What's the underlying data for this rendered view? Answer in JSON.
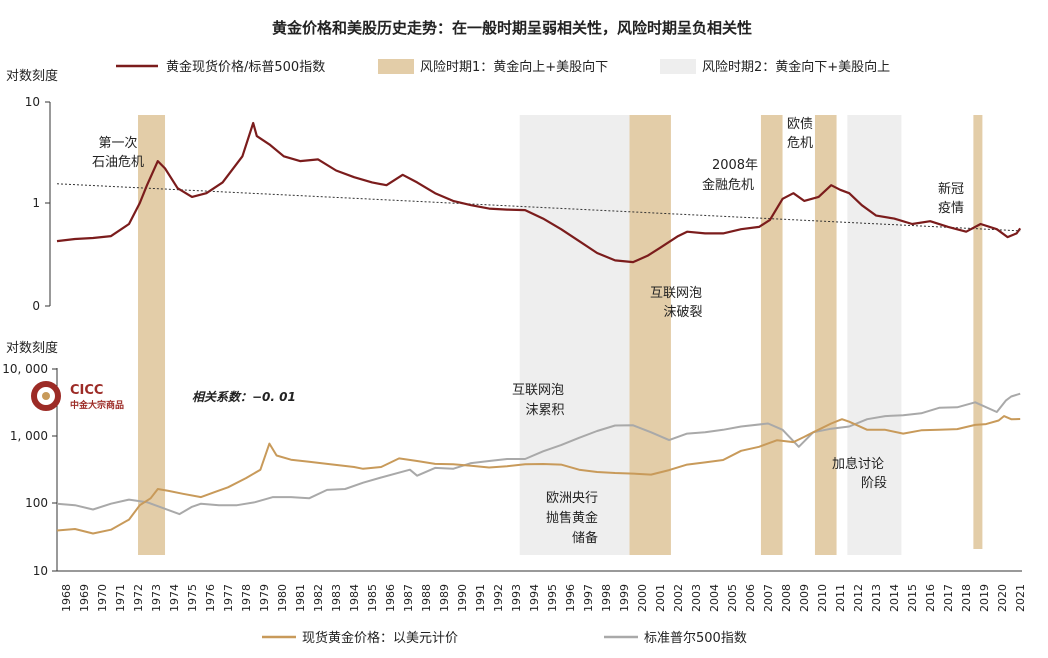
{
  "chart_data": {
    "title": "黄金价格和美股历史走势：在一般时期呈弱相关性，风险时期呈负相关性",
    "legend": {
      "ratio_line": "黄金现货价格/标普500指数",
      "risk1": "风险时期1：黄金向上+美股向下",
      "risk2": "风险时期2：黄金向下+美股向上"
    },
    "colors": {
      "ratio": "#7b1c1c",
      "trend": "#333333",
      "gold": "#c89a5a",
      "spx": "#a9a9a9",
      "risk1": "#e3cda8",
      "risk2": "#eeeeee",
      "brand": "#9c2b26"
    },
    "x_range": [
      1968,
      2021.6
    ],
    "x_ticks": [
      "1968",
      "1969",
      "1970",
      "1971",
      "1972",
      "1973",
      "1974",
      "1975",
      "1976",
      "1977",
      "1978",
      "1979",
      "1980",
      "1981",
      "1982",
      "1983",
      "1984",
      "1985",
      "1986",
      "1987",
      "1988",
      "1989",
      "1990",
      "1991",
      "1992",
      "1993",
      "1994",
      "1995",
      "1996",
      "1997",
      "1998",
      "1999",
      "2000",
      "2001",
      "2002",
      "2003",
      "2004",
      "2005",
      "2006",
      "2007",
      "2008",
      "2009",
      "2010",
      "2011",
      "2012",
      "2013",
      "2014",
      "2015",
      "2016",
      "2017",
      "2018",
      "2019",
      "2020",
      "2021"
    ],
    "risk_periods_1": [
      [
        1972.5,
        1974.0
      ],
      [
        1999.8,
        2002.1
      ],
      [
        2007.1,
        2008.3
      ],
      [
        2010.1,
        2011.3
      ],
      [
        2018.9,
        2019.4
      ]
    ],
    "risk_periods_2": [
      [
        1993.7,
        1999.8
      ],
      [
        2011.9,
        2014.9
      ]
    ],
    "top_panel": {
      "type": "line",
      "y_axis_title": "对数刻度",
      "y_ticks": [
        "10",
        "1",
        "0"
      ],
      "series": {
        "name": "黄金现货价格/标普500指数",
        "points": [
          [
            1968,
            0.42
          ],
          [
            1969,
            0.44
          ],
          [
            1970,
            0.45
          ],
          [
            1971,
            0.47
          ],
          [
            1972,
            0.62
          ],
          [
            1972.6,
            1.0
          ],
          [
            1973.0,
            1.5
          ],
          [
            1973.6,
            2.6
          ],
          [
            1974.0,
            2.2
          ],
          [
            1974.7,
            1.4
          ],
          [
            1975.5,
            1.15
          ],
          [
            1976.3,
            1.25
          ],
          [
            1977.2,
            1.6
          ],
          [
            1978.3,
            2.9
          ],
          [
            1978.9,
            6.2
          ],
          [
            1979.1,
            4.6
          ],
          [
            1979.8,
            3.8
          ],
          [
            1980.6,
            2.9
          ],
          [
            1981.5,
            2.6
          ],
          [
            1982.5,
            2.7
          ],
          [
            1983.5,
            2.1
          ],
          [
            1984.5,
            1.8
          ],
          [
            1985.5,
            1.6
          ],
          [
            1986.3,
            1.5
          ],
          [
            1987.2,
            1.9
          ],
          [
            1988.0,
            1.6
          ],
          [
            1989,
            1.25
          ],
          [
            1990,
            1.05
          ],
          [
            1991,
            0.95
          ],
          [
            1992,
            0.88
          ],
          [
            1993,
            0.86
          ],
          [
            1994,
            0.85
          ],
          [
            1995,
            0.7
          ],
          [
            1996,
            0.55
          ],
          [
            1997,
            0.42
          ],
          [
            1998,
            0.32
          ],
          [
            1999,
            0.27
          ],
          [
            2000,
            0.26
          ],
          [
            2000.8,
            0.3
          ],
          [
            2001.5,
            0.36
          ],
          [
            2002.5,
            0.47
          ],
          [
            2003,
            0.52
          ],
          [
            2004,
            0.5
          ],
          [
            2005,
            0.5
          ],
          [
            2006,
            0.55
          ],
          [
            2007,
            0.58
          ],
          [
            2007.6,
            0.68
          ],
          [
            2008.3,
            1.1
          ],
          [
            2008.9,
            1.25
          ],
          [
            2009.5,
            1.05
          ],
          [
            2010.3,
            1.15
          ],
          [
            2011.0,
            1.5
          ],
          [
            2011.5,
            1.35
          ],
          [
            2012,
            1.25
          ],
          [
            2012.7,
            0.95
          ],
          [
            2013.5,
            0.75
          ],
          [
            2014.5,
            0.7
          ],
          [
            2015.5,
            0.62
          ],
          [
            2016.5,
            0.66
          ],
          [
            2017.5,
            0.58
          ],
          [
            2018.5,
            0.52
          ],
          [
            2019.3,
            0.62
          ],
          [
            2020.2,
            0.55
          ],
          [
            2020.8,
            0.46
          ],
          [
            2021.3,
            0.5
          ],
          [
            2021.5,
            0.56
          ]
        ]
      },
      "trend": {
        "name": "趋势线",
        "start": [
          1968,
          1.55
        ],
        "end": [
          2021.5,
          0.53
        ]
      }
    },
    "bottom_panel": {
      "type": "line",
      "y_axis_title": "对数刻度",
      "y_ticks": [
        "10, 000",
        "1, 000",
        "100",
        "10"
      ],
      "series": [
        {
          "name": "现货黄金价格：以美元计价",
          "points": [
            [
              1968,
              40
            ],
            [
              1969,
              42
            ],
            [
              1970,
              36
            ],
            [
              1971,
              41
            ],
            [
              1972,
              58
            ],
            [
              1972.6,
              95
            ],
            [
              1973.2,
              120
            ],
            [
              1973.6,
              165
            ],
            [
              1974.2,
              155
            ],
            [
              1975.0,
              140
            ],
            [
              1976,
              125
            ],
            [
              1976.8,
              150
            ],
            [
              1977.5,
              175
            ],
            [
              1978.5,
              240
            ],
            [
              1979.3,
              320
            ],
            [
              1979.8,
              780
            ],
            [
              1980.2,
              520
            ],
            [
              1981,
              450
            ],
            [
              1982,
              420
            ],
            [
              1983,
              390
            ],
            [
              1984.5,
              350
            ],
            [
              1985,
              330
            ],
            [
              1986,
              350
            ],
            [
              1987,
              470
            ],
            [
              1988,
              430
            ],
            [
              1989,
              390
            ],
            [
              1990,
              385
            ],
            [
              1991,
              365
            ],
            [
              1992,
              345
            ],
            [
              1993,
              360
            ],
            [
              1994,
              385
            ],
            [
              1995,
              388
            ],
            [
              1996,
              380
            ],
            [
              1997,
              320
            ],
            [
              1998,
              295
            ],
            [
              1999,
              285
            ],
            [
              2000,
              280
            ],
            [
              2001,
              270
            ],
            [
              2002,
              315
            ],
            [
              2003,
              380
            ],
            [
              2004,
              410
            ],
            [
              2005,
              445
            ],
            [
              2006,
              610
            ],
            [
              2007,
              700
            ],
            [
              2008,
              875
            ],
            [
              2008.9,
              820
            ],
            [
              2009.5,
              980
            ],
            [
              2010,
              1150
            ],
            [
              2011,
              1550
            ],
            [
              2011.6,
              1800
            ],
            [
              2012,
              1650
            ],
            [
              2013,
              1250
            ],
            [
              2014,
              1250
            ],
            [
              2015,
              1100
            ],
            [
              2016,
              1230
            ],
            [
              2017,
              1250
            ],
            [
              2018,
              1280
            ],
            [
              2019,
              1480
            ],
            [
              2019.6,
              1520
            ],
            [
              2020.3,
              1720
            ],
            [
              2020.6,
              2000
            ],
            [
              2021,
              1800
            ],
            [
              2021.5,
              1810
            ]
          ]
        },
        {
          "name": "标准普尔500指数",
          "points": [
            [
              1968,
              100
            ],
            [
              1969,
              95
            ],
            [
              1970,
              82
            ],
            [
              1971,
              100
            ],
            [
              1972,
              115
            ],
            [
              1973,
              105
            ],
            [
              1974.8,
              70
            ],
            [
              1975.5,
              90
            ],
            [
              1976,
              100
            ],
            [
              1977,
              95
            ],
            [
              1978,
              95
            ],
            [
              1979,
              105
            ],
            [
              1980,
              125
            ],
            [
              1981,
              125
            ],
            [
              1982,
              120
            ],
            [
              1983,
              160
            ],
            [
              1984,
              165
            ],
            [
              1985,
              205
            ],
            [
              1986,
              245
            ],
            [
              1987.6,
              320
            ],
            [
              1988,
              260
            ],
            [
              1989,
              340
            ],
            [
              1990,
              330
            ],
            [
              1991,
              400
            ],
            [
              1992,
              430
            ],
            [
              1993,
              460
            ],
            [
              1994,
              460
            ],
            [
              1995,
              600
            ],
            [
              1996,
              740
            ],
            [
              1997,
              950
            ],
            [
              1998,
              1200
            ],
            [
              1999,
              1450
            ],
            [
              2000,
              1460
            ],
            [
              2001,
              1150
            ],
            [
              2002,
              880
            ],
            [
              2003,
              1100
            ],
            [
              2004,
              1150
            ],
            [
              2005,
              1250
            ],
            [
              2006,
              1400
            ],
            [
              2007.5,
              1550
            ],
            [
              2008.3,
              1250
            ],
            [
              2009.2,
              700
            ],
            [
              2010,
              1150
            ],
            [
              2011,
              1300
            ],
            [
              2012,
              1400
            ],
            [
              2013,
              1800
            ],
            [
              2014,
              2000
            ],
            [
              2015,
              2050
            ],
            [
              2016,
              2200
            ],
            [
              2017,
              2650
            ],
            [
              2018,
              2700
            ],
            [
              2019,
              3200
            ],
            [
              2020.2,
              2300
            ],
            [
              2020.7,
              3400
            ],
            [
              2021,
              3900
            ],
            [
              2021.5,
              4300
            ]
          ]
        }
      ]
    },
    "annotations": {
      "oil_crisis": [
        "第一次",
        "石油危机"
      ],
      "gfc": [
        "2008年",
        "金融危机"
      ],
      "euro_debt": [
        "欧债",
        "危机"
      ],
      "covid": [
        "新冠",
        "疫情"
      ],
      "dotcom_burst": [
        "互联网泡",
        "沫破裂"
      ],
      "dotcom_build": [
        "互联网泡",
        "沫累积"
      ],
      "ecb_sale": [
        "欧洲央行",
        "抛售黄金",
        "储备"
      ],
      "rate_hike": [
        "加息讨论",
        "阶段"
      ],
      "correlation": "相关系数：−0. 01"
    },
    "logo": {
      "name": "CICC",
      "subtitle": "中金大宗商品"
    }
  }
}
